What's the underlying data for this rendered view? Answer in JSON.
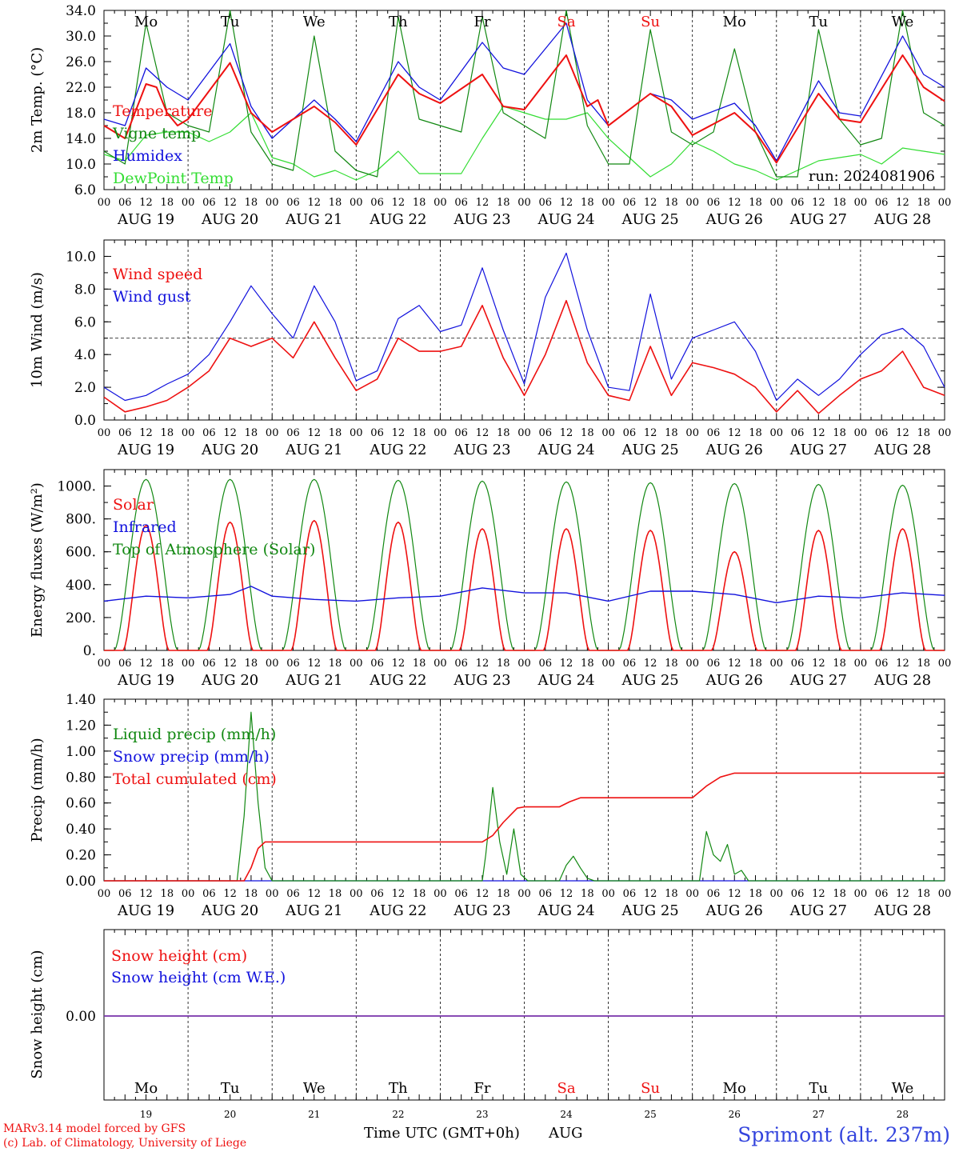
{
  "days": [
    "AUG 19",
    "AUG 20",
    "AUG 21",
    "AUG 22",
    "AUG 23",
    "AUG 24",
    "AUG 25",
    "AUG 26",
    "AUG 27",
    "AUG 28"
  ],
  "weekdays": [
    "Mo",
    "Tu",
    "We",
    "Th",
    "Fr",
    "Sa",
    "Su",
    "Mo",
    "Tu",
    "We"
  ],
  "weekend_color": "#ee1111",
  "day_numbers": [
    "19",
    "20",
    "21",
    "22",
    "23",
    "24",
    "25",
    "26",
    "27",
    "28"
  ],
  "hour_ticks": [
    "00",
    "06",
    "12",
    "18"
  ],
  "run_label": "run: 2024081906",
  "xlabel": "Time UTC (GMT+0h)",
  "month_label": "AUG",
  "footer": {
    "model": "MARv3.14 model forced by GFS",
    "copyright": "(c) Lab. of Climatology, University of Liege",
    "station": "Sprimont (alt. 237m)"
  },
  "colors": {
    "red": "#ee1111",
    "green": "#118811",
    "blue": "#1111dd",
    "lightgreen": "#33dd33",
    "purple": "#7733aa",
    "station": "#3344dd"
  },
  "chart_data": [
    {
      "id": "temperature",
      "type": "line",
      "ylabel": "2m Temp. (°C)",
      "ylim": [
        6,
        34
      ],
      "yticks": [
        "6.0",
        "10.0",
        "14.0",
        "18.0",
        "22.0",
        "26.0",
        "30.0",
        "34.0"
      ],
      "x_unit": "hours since AUG 19 00 UTC",
      "series": [
        {
          "name": "Temperature",
          "color": "red",
          "x": [
            0,
            6,
            12,
            15,
            18,
            21,
            24,
            36,
            42,
            48,
            60,
            66,
            72,
            84,
            90,
            96,
            108,
            114,
            120,
            132,
            138,
            141,
            144,
            156,
            162,
            168,
            180,
            186,
            192,
            204,
            210,
            216,
            228,
            234,
            240
          ],
          "y": [
            16,
            14,
            22.5,
            22,
            18,
            16,
            17,
            25.8,
            18,
            15,
            19,
            16.5,
            13,
            24,
            21,
            19.5,
            24,
            19,
            18.5,
            27,
            19,
            20,
            16,
            21,
            19,
            14.5,
            18,
            15,
            10.2,
            21,
            17,
            16.5,
            27,
            22,
            19.8
          ]
        },
        {
          "name": "Vigne temp",
          "color": "green",
          "x": [
            0,
            6,
            12,
            18,
            24,
            30,
            36,
            42,
            48,
            54,
            60,
            66,
            72,
            78,
            84,
            90,
            96,
            102,
            108,
            114,
            120,
            126,
            132,
            138,
            144,
            150,
            156,
            162,
            168,
            174,
            180,
            186,
            192,
            198,
            204,
            210,
            216,
            222,
            228,
            234,
            240
          ],
          "y": [
            12,
            10,
            32,
            18,
            16,
            15,
            34,
            15,
            10,
            9,
            30,
            12,
            9,
            8,
            33,
            17,
            16,
            15,
            33,
            18,
            16,
            14,
            34,
            16,
            10,
            10,
            31,
            15,
            13,
            15,
            28,
            15,
            8,
            8,
            31,
            17,
            13,
            14,
            34,
            18,
            16
          ]
        },
        {
          "name": "Humidex",
          "color": "blue",
          "x": [
            0,
            6,
            12,
            18,
            24,
            36,
            42,
            48,
            60,
            66,
            72,
            84,
            90,
            96,
            108,
            114,
            120,
            132,
            138,
            144,
            156,
            162,
            168,
            180,
            186,
            192,
            204,
            210,
            216,
            228,
            234,
            240
          ],
          "y": [
            17,
            16,
            25,
            22,
            20,
            28.8,
            19,
            14,
            20,
            17,
            13.5,
            26,
            22,
            20,
            29,
            25,
            24,
            32,
            20,
            16,
            21,
            20,
            17,
            19.5,
            16,
            10.5,
            23,
            18,
            17.5,
            30,
            24,
            22
          ]
        },
        {
          "name": "DewPoint Temp",
          "color": "lightgreen",
          "x": [
            0,
            6,
            12,
            18,
            24,
            30,
            36,
            42,
            48,
            54,
            60,
            66,
            72,
            78,
            84,
            90,
            96,
            102,
            108,
            114,
            120,
            126,
            132,
            138,
            144,
            150,
            156,
            162,
            168,
            174,
            180,
            186,
            192,
            198,
            204,
            210,
            216,
            222,
            228,
            234,
            240
          ],
          "y": [
            11.5,
            10.5,
            14.5,
            15,
            15,
            13.5,
            15,
            18,
            11,
            10,
            8,
            9,
            7.5,
            9,
            12,
            8.5,
            8.5,
            8.5,
            14,
            19,
            18,
            17,
            17,
            18,
            14,
            11,
            8,
            10,
            13.5,
            12,
            10,
            9,
            7.5,
            9,
            10.5,
            11,
            11.5,
            10,
            12.5,
            12,
            11.5
          ]
        }
      ]
    },
    {
      "id": "wind",
      "type": "line",
      "ylabel": "10m Wind (m/s)",
      "ylim": [
        0,
        11
      ],
      "yticks": [
        "0.0",
        "2.0",
        "4.0",
        "6.0",
        "8.0",
        "10.0"
      ],
      "reference_line": 5,
      "series": [
        {
          "name": "Wind speed",
          "color": "red",
          "x": [
            0,
            6,
            12,
            18,
            24,
            30,
            36,
            42,
            48,
            54,
            60,
            66,
            72,
            78,
            84,
            90,
            96,
            102,
            108,
            114,
            120,
            126,
            132,
            138,
            144,
            150,
            156,
            162,
            168,
            174,
            180,
            186,
            192,
            198,
            204,
            210,
            216,
            222,
            228,
            234,
            240
          ],
          "y": [
            1.4,
            0.5,
            0.8,
            1.2,
            2,
            3,
            5,
            4.5,
            5,
            3.8,
            6,
            3.8,
            1.8,
            2.5,
            5,
            4.2,
            4.2,
            4.5,
            7,
            3.8,
            1.5,
            4,
            7.3,
            3.5,
            1.5,
            1.2,
            4.5,
            1.5,
            3.5,
            3.2,
            2.8,
            2,
            0.5,
            1.8,
            0.4,
            1.5,
            2.5,
            3,
            4.2,
            2,
            1.5
          ]
        },
        {
          "name": "Wind gust",
          "color": "blue",
          "x": [
            0,
            6,
            12,
            18,
            24,
            30,
            36,
            42,
            48,
            54,
            60,
            66,
            72,
            78,
            84,
            90,
            96,
            102,
            108,
            114,
            120,
            126,
            132,
            138,
            144,
            150,
            156,
            162,
            168,
            174,
            180,
            186,
            192,
            198,
            204,
            210,
            216,
            222,
            228,
            234,
            240
          ],
          "y": [
            2,
            1.2,
            1.5,
            2.2,
            2.8,
            4,
            6,
            8.2,
            6.5,
            5,
            8.2,
            6,
            2.4,
            3,
            6.2,
            7,
            5.4,
            5.8,
            9.3,
            5.5,
            2.2,
            7.5,
            10.2,
            5.5,
            2,
            1.8,
            7.7,
            2.5,
            5,
            5.5,
            6,
            4.2,
            1.2,
            2.5,
            1.5,
            2.5,
            4,
            5.2,
            5.6,
            4.5,
            2
          ]
        }
      ]
    },
    {
      "id": "energy",
      "type": "line",
      "ylabel": "Energy fluxes (W/m²)",
      "ylim": [
        0,
        1100
      ],
      "yticks": [
        "0.",
        "200.",
        "400.",
        "600.",
        "800.",
        "1000."
      ],
      "series": [
        {
          "name": "Solar",
          "color": "red",
          "peaks": [
            [
              12,
              760
            ],
            [
              36,
              780
            ],
            [
              60,
              790
            ],
            [
              84,
              780
            ],
            [
              108,
              740
            ],
            [
              132,
              740
            ],
            [
              156,
              730
            ],
            [
              180,
              600
            ],
            [
              204,
              730
            ],
            [
              228,
              740
            ]
          ]
        },
        {
          "name": "Infrared",
          "color": "blue",
          "x": [
            0,
            12,
            24,
            36,
            42,
            48,
            60,
            72,
            84,
            96,
            108,
            120,
            132,
            144,
            156,
            168,
            180,
            192,
            204,
            216,
            228,
            240
          ],
          "y": [
            300,
            330,
            320,
            340,
            390,
            330,
            310,
            300,
            320,
            330,
            380,
            350,
            350,
            300,
            360,
            360,
            340,
            290,
            330,
            320,
            350,
            335
          ]
        },
        {
          "name": "Top of Atmosphere (Solar)",
          "color": "green",
          "peaks": [
            [
              12,
              1040
            ],
            [
              36,
              1040
            ],
            [
              60,
              1040
            ],
            [
              84,
              1035
            ],
            [
              108,
              1030
            ],
            [
              132,
              1025
            ],
            [
              156,
              1020
            ],
            [
              180,
              1015
            ],
            [
              204,
              1010
            ],
            [
              228,
              1005
            ]
          ]
        }
      ]
    },
    {
      "id": "precip",
      "type": "line",
      "ylabel": "Precip (mm/h)",
      "ylim": [
        0,
        1.4
      ],
      "yticks": [
        "0.00",
        "0.20",
        "0.40",
        "0.60",
        "0.80",
        "1.00",
        "1.20",
        "1.40"
      ],
      "series": [
        {
          "name": "Liquid precip (mm/h)",
          "color": "green",
          "x": [
            0,
            38,
            40,
            42,
            44,
            46,
            48,
            50,
            108,
            109,
            111,
            113,
            115,
            117,
            119,
            121,
            123,
            130,
            132,
            134,
            136,
            138,
            140,
            170,
            172,
            174,
            176,
            178,
            180,
            182,
            184,
            240
          ],
          "y": [
            0,
            0,
            0.5,
            1.3,
            0.6,
            0.1,
            0,
            0,
            0,
            0.2,
            0.72,
            0.3,
            0.05,
            0.4,
            0.05,
            0,
            0,
            0,
            0.12,
            0.19,
            0.1,
            0.02,
            0,
            0,
            0.38,
            0.2,
            0.15,
            0.28,
            0.05,
            0.08,
            0,
            0
          ]
        },
        {
          "name": "Snow precip (mm/h)",
          "color": "blue",
          "x": [
            0,
            240
          ],
          "y": [
            0,
            0
          ]
        },
        {
          "name": "Total cumulated (cm)",
          "color": "red",
          "x": [
            0,
            40,
            42,
            44,
            46,
            48,
            108,
            111,
            114,
            118,
            120,
            130,
            133,
            136,
            140,
            144,
            168,
            172,
            176,
            180,
            184,
            240
          ],
          "y": [
            0,
            0,
            0.1,
            0.25,
            0.3,
            0.3,
            0.3,
            0.35,
            0.45,
            0.56,
            0.57,
            0.57,
            0.61,
            0.64,
            0.64,
            0.64,
            0.64,
            0.73,
            0.8,
            0.83,
            0.83,
            0.83
          ]
        }
      ]
    },
    {
      "id": "snow",
      "type": "line",
      "ylabel": "Snow height (cm)",
      "yticks": [
        "0.00"
      ],
      "series": [
        {
          "name": "Snow height (cm)",
          "color": "red",
          "x": [
            0,
            240
          ],
          "y": [
            0,
            0
          ]
        },
        {
          "name": "Snow height (cm W.E.)",
          "color": "blue",
          "x": [
            0,
            240
          ],
          "y": [
            0,
            0
          ]
        }
      ]
    }
  ]
}
